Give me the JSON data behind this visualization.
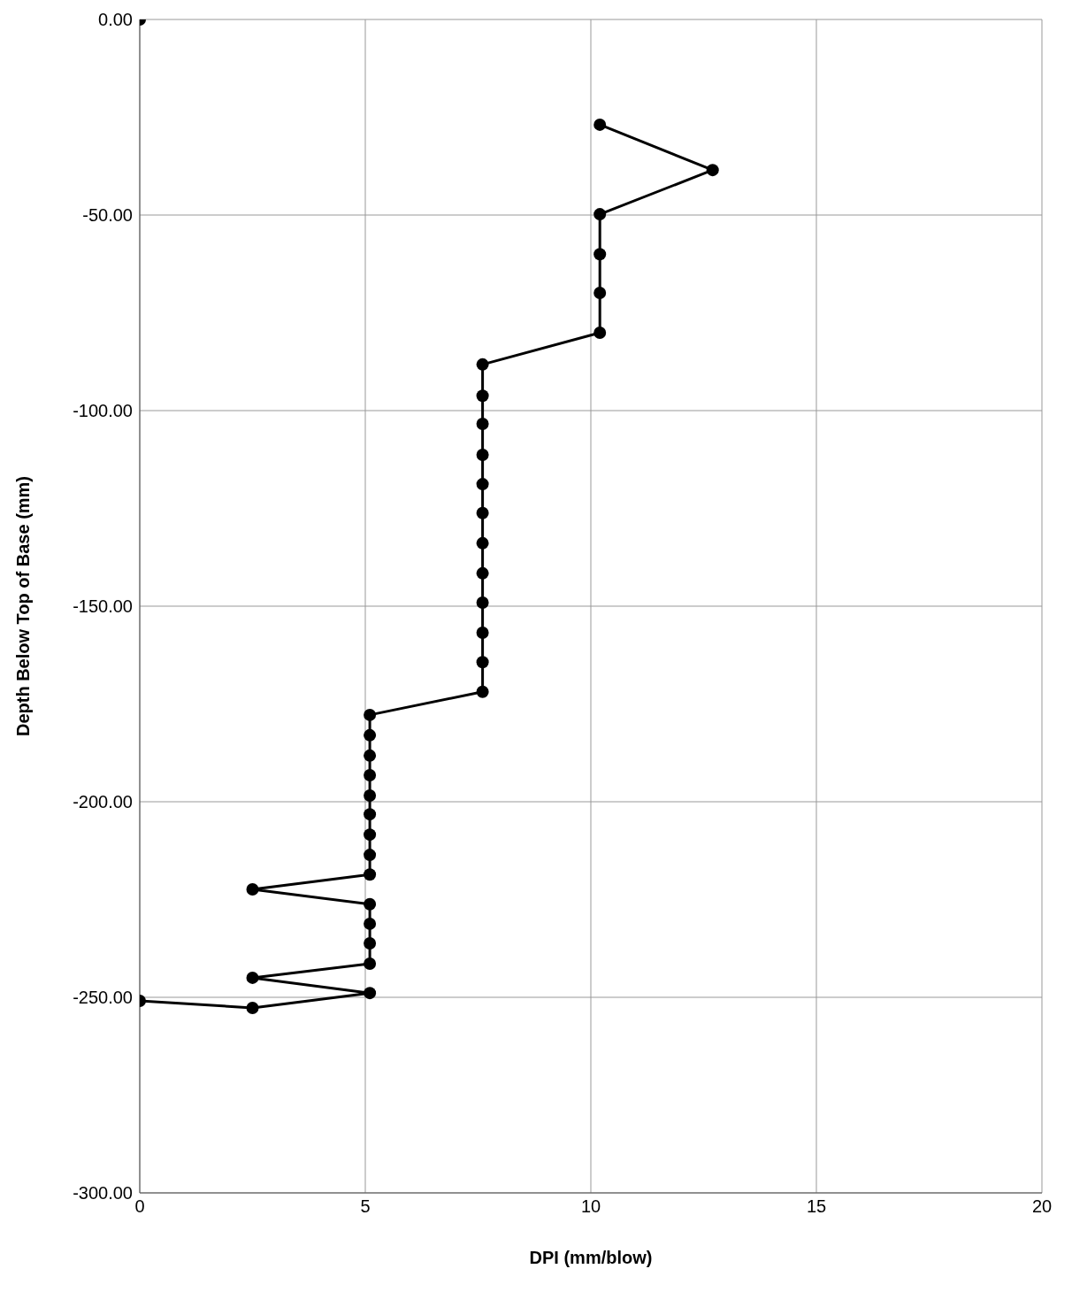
{
  "chart_data": {
    "type": "line",
    "xlabel": "DPI (mm/blow)",
    "ylabel": "Depth Below Top of Base (mm)",
    "xlim": [
      0,
      20
    ],
    "xticks": [
      0,
      5,
      10,
      15,
      20
    ],
    "ylim": [
      -300,
      0
    ],
    "yticks": [
      {
        "value": -300,
        "label": "-300.00"
      },
      {
        "value": -250,
        "label": "-250.00"
      },
      {
        "value": -200,
        "label": "-200.00"
      },
      {
        "value": -150,
        "label": "-150.00"
      },
      {
        "value": -100,
        "label": "-100.00"
      },
      {
        "value": -50,
        "label": "-50.00"
      },
      {
        "value": 0,
        "label": "0.00"
      }
    ],
    "grid": true,
    "legend": false,
    "marker": "circle",
    "line_style": "solid",
    "series": [
      {
        "type": "scatter",
        "color": "#000000",
        "x": [
          0
        ],
        "values": [
          0
        ]
      },
      {
        "color": "#000000",
        "x": [
          10.2,
          12.7,
          10.2,
          10.2,
          10.2,
          10.2,
          7.6,
          7.6,
          7.6,
          7.6,
          7.6,
          7.6,
          7.6,
          7.6,
          7.6,
          7.6,
          7.6,
          7.6,
          5.1,
          5.1,
          5.1,
          5.1,
          5.1,
          5.1,
          5.1,
          5.1,
          5.1,
          2.5,
          5.1,
          5.1,
          5.1,
          5.1,
          2.5,
          5.1,
          2.5,
          0
        ],
        "values": [
          -26.9,
          -38.5,
          -49.8,
          -60,
          -69.9,
          -80.1,
          -88.2,
          -96.2,
          -103.4,
          -111.3,
          -118.8,
          -126.2,
          -133.9,
          -141.6,
          -149.1,
          -156.8,
          -164.3,
          -171.9,
          -177.8,
          -183,
          -188.2,
          -193.2,
          -198.4,
          -203.2,
          -208.4,
          -213.6,
          -218.6,
          -222.4,
          -226.2,
          -231.2,
          -236.2,
          -241.4,
          -245,
          -248.9,
          -252.7,
          -250.9
        ]
      }
    ]
  }
}
